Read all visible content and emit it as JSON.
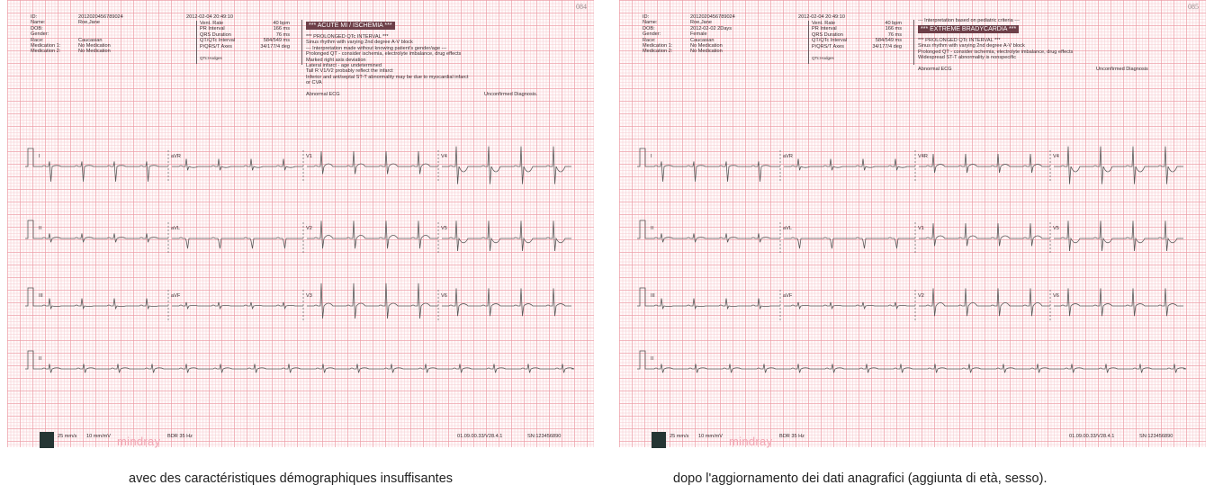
{
  "panels": [
    {
      "page_number": "084",
      "patient": {
        "labels": [
          "ID:",
          "Name:",
          "DOB:",
          "Gender:",
          "Race:",
          "Medication 1:",
          "Medication 2:"
        ],
        "values": [
          "2012020456789024",
          "Roe,Jane",
          "",
          "",
          "Caucasian",
          "No Medication",
          "No Medication"
        ]
      },
      "datetime": "2012-02-04 20:49:10",
      "measurements": [
        {
          "label": "Vent. Rate",
          "value": "40 bpm"
        },
        {
          "label": "PR Interval",
          "value": "166 ms"
        },
        {
          "label": "QRS Duration",
          "value": "76 ms"
        },
        {
          "label": "QT/QTc Interval",
          "value": "584/549 ms"
        },
        {
          "label": "P/QRS/T Axes",
          "value": "34/177/4 deg"
        }
      ],
      "qtc_method": "QTc:Hodges",
      "pre_badge_line": "",
      "badge": "*** ACUTE MI / ISCHEMIA ***",
      "interpretation": [
        "*** PROLONGED QTc INTERVAL ***",
        "Sinus rhythm with varying 2nd degree A-V block",
        "--- Interpretation made without knowing patient's gender/age ---",
        "Prolonged QT - consider ischemia, electrolyte imbalance, drug effects",
        "Marked right axis deviation",
        "Lateral infarct - age undetermined",
        "Tall R V1/V2 probably reflect the infarct",
        "Inferior and ant/septal ST-T abnormality may be due to myocardial infarct",
        "   or CVA"
      ],
      "summary": "Abnormal ECG",
      "confirmation": "Unconfirmed Diagnosis.",
      "leads": [
        [
          "I",
          "aVR",
          "V1",
          "V4"
        ],
        [
          "II",
          "aVL",
          "V2",
          "V5"
        ],
        [
          "III",
          "aVF",
          "V3",
          "V6"
        ],
        [
          "II"
        ]
      ],
      "footer": {
        "speed": "25 mm/s",
        "gain": "10 mm/mV",
        "filter": "BDR 35 Hz",
        "version": "01.09.00.33/V28.4.1",
        "serial": "SN:123456890",
        "brand": "mindray"
      }
    },
    {
      "page_number": "085",
      "patient": {
        "labels": [
          "ID:",
          "Name:",
          "DOB:",
          "Gender:",
          "Race:",
          "Medication 1:",
          "Medication 2:"
        ],
        "values": [
          "2012020456789024",
          "Roe,Jane",
          "2012-02-02 2Days",
          "Female",
          "Caucasian",
          "No Medication",
          "No Medication"
        ]
      },
      "datetime": "2012-02-04 20:49:10",
      "measurements": [
        {
          "label": "Vent. Rate",
          "value": "40 bpm"
        },
        {
          "label": "PR Interval",
          "value": "166 ms"
        },
        {
          "label": "QRS Duration",
          "value": "76 ms"
        },
        {
          "label": "QT/QTc Interval",
          "value": "584/549 ms"
        },
        {
          "label": "P/QRS/T Axes",
          "value": "34/177/4 deg"
        }
      ],
      "qtc_method": "QTc:Hodges",
      "pre_badge_line": "--- Interpretation based on pediatric criteria ---",
      "badge": "*** EXTREME BRADYCARDIA ***",
      "interpretation": [
        "*** PROLONGED QTc INTERVAL ***",
        "Sinus rhythm with varying 2nd degree A-V block",
        "Prolonged QT - consider ischemia, electrolyte imbalance, drug effects",
        "Widespread ST-T abnormality is nonspecific"
      ],
      "summary": "Abnormal ECG",
      "confirmation": "Unconfirmed Diagnosis",
      "leads": [
        [
          "I",
          "aVR",
          "V4R",
          "V4"
        ],
        [
          "II",
          "aVL",
          "V1",
          "V5"
        ],
        [
          "III",
          "aVF",
          "V2",
          "V6"
        ],
        [
          "II"
        ]
      ],
      "footer": {
        "speed": "25 mm/s",
        "gain": "10 mm/mV",
        "filter": "BDR 35 Hz",
        "version": "01.09.00.33/V28.4.1",
        "serial": "SN:123456890",
        "brand": "mindray"
      }
    }
  ],
  "captions": [
    "avec des caractéristiques démographiques insuffisantes",
    "dopo l'aggiornamento dei dati anagrafici (aggiunta di età, sesso)."
  ],
  "colors": {
    "badge": "#6d3f48",
    "grid": "#ec96a0",
    "trace": "#555555",
    "brand": "#f2a6b4"
  }
}
